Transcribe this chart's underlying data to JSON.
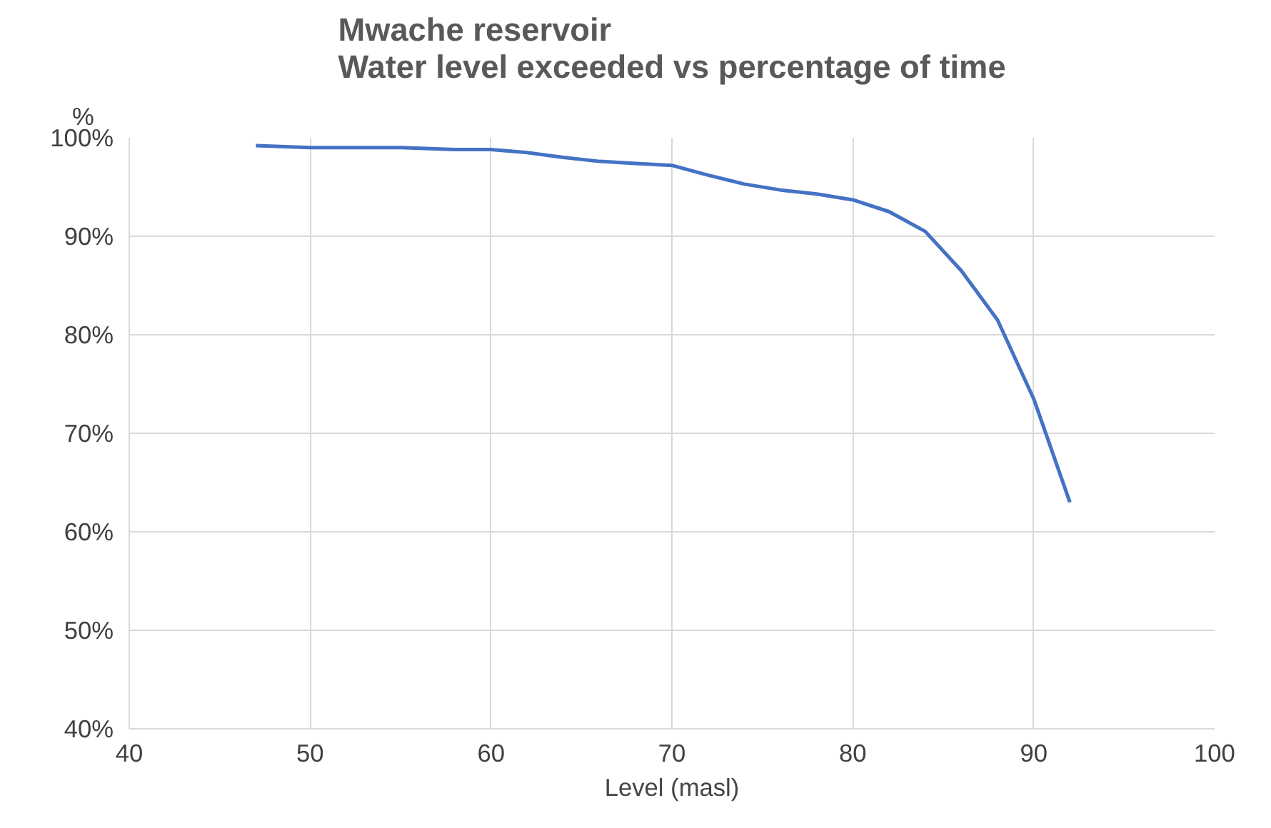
{
  "chart_data": {
    "type": "line",
    "title": "Mwache reservoir\nWater level exceeded vs percentage of time",
    "xlabel": "Level (masl)",
    "ylabel": "%",
    "x": [
      47,
      50,
      55,
      58,
      60,
      62,
      64,
      66,
      68,
      70,
      72,
      74,
      76,
      78,
      80,
      82,
      84,
      86,
      88,
      90,
      92
    ],
    "series": [
      {
        "color": "#4472c4",
        "values": [
          99.2,
          99.0,
          99.0,
          98.8,
          98.8,
          98.5,
          98.0,
          97.6,
          97.4,
          97.2,
          96.2,
          95.3,
          94.7,
          94.3,
          93.7,
          92.5,
          90.5,
          86.5,
          81.5,
          73.5,
          63.0
        ]
      }
    ],
    "xlim": [
      40,
      100
    ],
    "xticks": [
      40,
      50,
      60,
      70,
      80,
      90,
      100
    ],
    "ylim": [
      40,
      100
    ],
    "yticks": [
      {
        "value": 40,
        "label": "40%"
      },
      {
        "value": 50,
        "label": "50%"
      },
      {
        "value": 60,
        "label": "60%"
      },
      {
        "value": 70,
        "label": "70%"
      },
      {
        "value": 80,
        "label": "80%"
      },
      {
        "value": 90,
        "label": "90%"
      },
      {
        "value": 100,
        "label": "100%"
      }
    ],
    "grid": true,
    "marker": "none",
    "line_style": "solid"
  }
}
